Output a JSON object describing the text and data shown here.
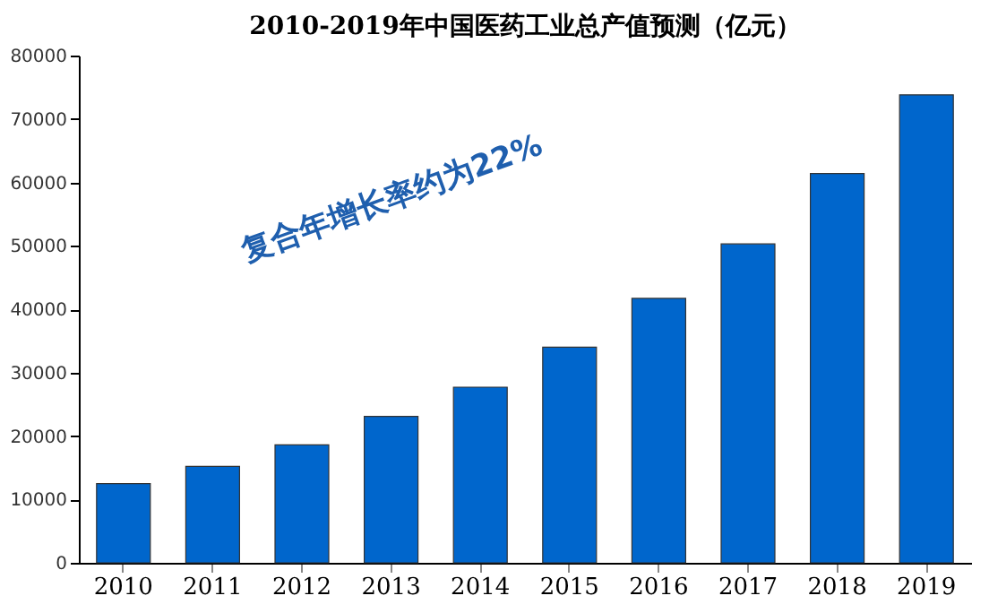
{
  "chart_data": {
    "type": "bar",
    "title": "2010-2019年中国医药工业总产值预测（亿元）",
    "categories": [
      "2010",
      "2011",
      "2012",
      "2013",
      "2014",
      "2015",
      "2016",
      "2017",
      "2018",
      "2019"
    ],
    "values": [
      12500,
      15200,
      18600,
      23100,
      27700,
      34000,
      41700,
      50300,
      61400,
      73800
    ],
    "color": "#0066cc",
    "ylim": [
      0,
      80000
    ],
    "yticks": [
      0,
      10000,
      20000,
      30000,
      40000,
      50000,
      60000,
      70000,
      80000
    ],
    "grid": false,
    "annotations": [
      "复合年增长率约为22%"
    ]
  }
}
